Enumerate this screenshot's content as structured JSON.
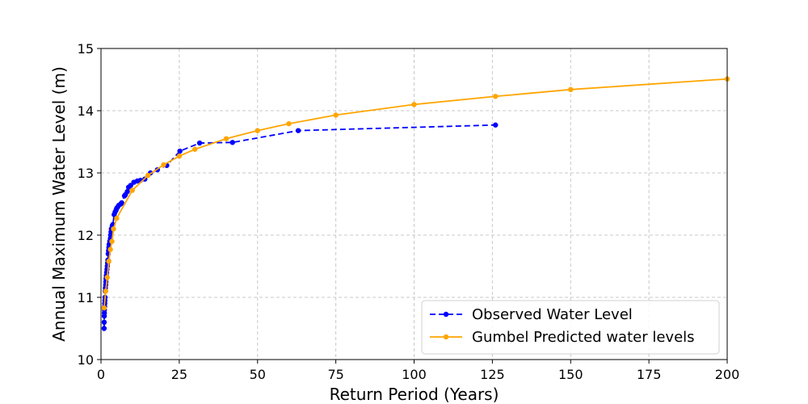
{
  "chart_data": {
    "type": "line",
    "xlabel": "Return Period (Years)",
    "ylabel": "Annual Maximum Water Level (m)",
    "xlim": [
      0,
      200
    ],
    "ylim": [
      10,
      15
    ],
    "xticks": [
      0,
      25,
      50,
      75,
      100,
      125,
      150,
      175,
      200
    ],
    "yticks": [
      10,
      11,
      12,
      13,
      14,
      15
    ],
    "grid": true,
    "legend_position": "lower-right",
    "series": [
      {
        "name": "Observed Water Level",
        "color": "#0000ff",
        "line_style": "dashed",
        "marker": "circle",
        "points": [
          [
            1.0,
            10.5
          ],
          [
            1.02,
            10.6
          ],
          [
            1.05,
            10.7
          ],
          [
            1.08,
            10.75
          ],
          [
            1.1,
            10.8
          ],
          [
            1.15,
            10.85
          ],
          [
            1.2,
            10.9
          ],
          [
            1.25,
            10.95
          ],
          [
            1.3,
            11.0
          ],
          [
            1.35,
            11.1
          ],
          [
            1.4,
            11.15
          ],
          [
            1.5,
            11.2
          ],
          [
            1.55,
            11.25
          ],
          [
            1.6,
            11.3
          ],
          [
            1.7,
            11.35
          ],
          [
            1.8,
            11.4
          ],
          [
            1.9,
            11.45
          ],
          [
            2.0,
            11.5
          ],
          [
            2.1,
            11.55
          ],
          [
            2.2,
            11.6
          ],
          [
            2.3,
            11.7
          ],
          [
            2.4,
            11.75
          ],
          [
            2.5,
            11.8
          ],
          [
            2.6,
            11.85
          ],
          [
            2.8,
            11.9
          ],
          [
            3.0,
            11.95
          ],
          [
            3.1,
            12.0
          ],
          [
            3.2,
            12.05
          ],
          [
            3.3,
            12.1
          ],
          [
            3.6,
            12.15
          ],
          [
            3.8,
            12.17
          ],
          [
            4.2,
            12.33
          ],
          [
            4.5,
            12.37
          ],
          [
            4.8,
            12.4
          ],
          [
            5.0,
            12.43
          ],
          [
            5.3,
            12.45
          ],
          [
            5.7,
            12.48
          ],
          [
            6.3,
            12.5
          ],
          [
            6.6,
            12.52
          ],
          [
            7.5,
            12.63
          ],
          [
            7.8,
            12.65
          ],
          [
            8.4,
            12.7
          ],
          [
            8.8,
            12.77
          ],
          [
            9.5,
            12.8
          ],
          [
            10.5,
            12.85
          ],
          [
            11.6,
            12.87
          ],
          [
            12.6,
            12.88
          ],
          [
            14.0,
            12.9
          ],
          [
            15.8,
            13.0
          ],
          [
            18.0,
            13.05
          ],
          [
            21.0,
            13.12
          ],
          [
            25.2,
            13.35
          ],
          [
            31.5,
            13.48
          ],
          [
            42.0,
            13.49
          ],
          [
            63.0,
            13.68
          ],
          [
            126.0,
            13.77
          ]
        ]
      },
      {
        "name": "Gumbel Predicted water levels",
        "color": "#ffa500",
        "line_style": "solid",
        "marker": "circle",
        "points": [
          [
            1.01,
            10.83
          ],
          [
            1.5,
            11.1
          ],
          [
            2.0,
            11.32
          ],
          [
            2.5,
            11.58
          ],
          [
            3.0,
            11.77
          ],
          [
            3.5,
            11.9
          ],
          [
            4.0,
            12.1
          ],
          [
            5.0,
            12.27
          ],
          [
            10.0,
            12.72
          ],
          [
            15.0,
            12.96
          ],
          [
            20.0,
            13.13
          ],
          [
            25.0,
            13.27
          ],
          [
            30.0,
            13.38
          ],
          [
            40.0,
            13.55
          ],
          [
            50.0,
            13.68
          ],
          [
            60.0,
            13.79
          ],
          [
            75.0,
            13.93
          ],
          [
            100.0,
            14.1
          ],
          [
            126.0,
            14.23
          ],
          [
            150.0,
            14.34
          ],
          [
            200.0,
            14.51
          ]
        ]
      }
    ]
  }
}
